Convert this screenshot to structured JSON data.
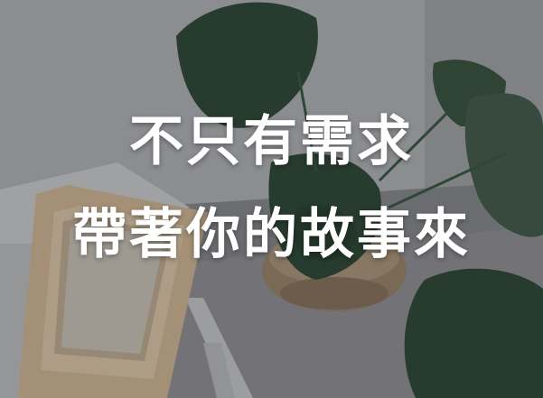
{
  "headline": {
    "line1": "不只有需求",
    "line2": "帶著你的故事來"
  },
  "colors": {
    "text": "#ffffff",
    "overlay": "rgba(20,22,24,0.28)",
    "leaf": "#2f4a36",
    "frame": "#d9b98f"
  }
}
